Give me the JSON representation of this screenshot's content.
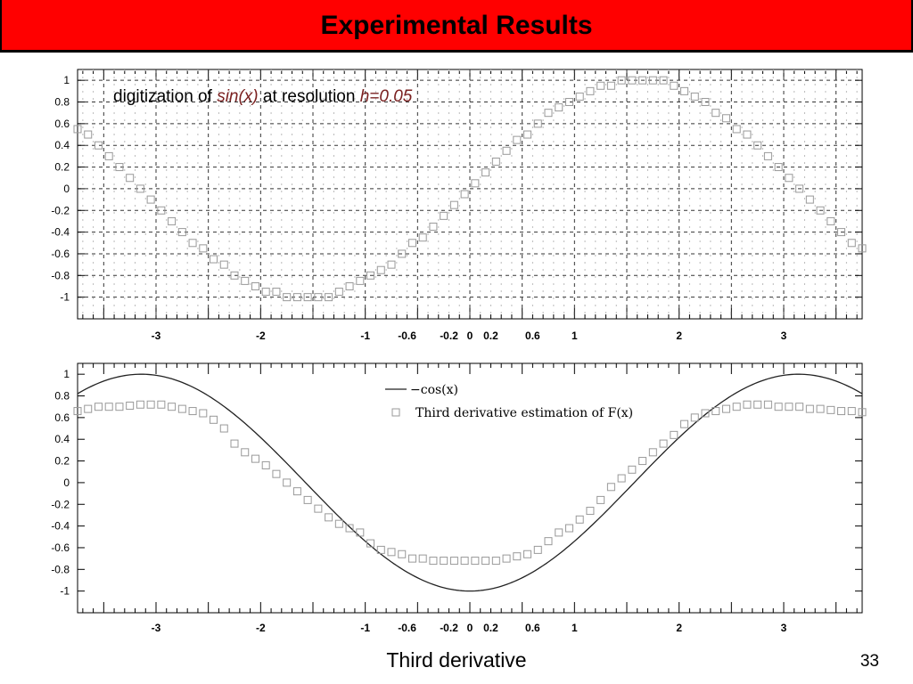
{
  "slide": {
    "title": "Experimental Results",
    "caption": "Third derivative",
    "page_number": "33"
  },
  "colors": {
    "title_bar": "#ff0000",
    "marker": "#999999",
    "curve": "#222222",
    "grid": "#333333"
  },
  "chart_data": [
    {
      "type": "scatter",
      "annotation": {
        "prefix": "digitization of ",
        "func": "sin(x)",
        "middle": " at resolution ",
        "param": "h=0.05",
        "italic_color": "#7a2020"
      },
      "xlim": [
        -3.75,
        3.75
      ],
      "ylim": [
        -1.2,
        1.1
      ],
      "xticks": [
        "-3",
        "-2",
        "-1",
        "-0.6",
        "-0.2",
        "0",
        "0.2",
        "0.6",
        "1",
        "2",
        "3"
      ],
      "yticks": [
        "1",
        "0.8",
        "0.6",
        "0.4",
        "0.2",
        "0",
        "-0.2",
        "-0.4",
        "-0.6",
        "-0.8",
        "-1"
      ],
      "grid": true,
      "series": [
        {
          "marker": "open-square",
          "function": "sin(x) quantized to step 0.05",
          "x": [
            -3.75,
            -3.65,
            -3.55,
            -3.45,
            -3.35,
            -3.25,
            -3.15,
            -3.05,
            -2.95,
            -2.85,
            -2.75,
            -2.65,
            -2.55,
            -2.45,
            -2.35,
            -2.25,
            -2.15,
            -2.05,
            -1.95,
            -1.85,
            -1.75,
            -1.65,
            -1.55,
            -1.45,
            -1.35,
            -1.25,
            -1.15,
            -1.05,
            -0.95,
            -0.85,
            -0.75,
            -0.65,
            -0.55,
            -0.45,
            -0.35,
            -0.25,
            -0.15,
            -0.05,
            0.05,
            0.15,
            0.25,
            0.35,
            0.45,
            0.55,
            0.65,
            0.75,
            0.85,
            0.95,
            1.05,
            1.15,
            1.25,
            1.35,
            1.45,
            1.55,
            1.65,
            1.75,
            1.85,
            1.95,
            2.05,
            2.15,
            2.25,
            2.35,
            2.45,
            2.55,
            2.65,
            2.75,
            2.85,
            2.95,
            3.05,
            3.15,
            3.25,
            3.35,
            3.45,
            3.55,
            3.65,
            3.75
          ],
          "y": [
            0.55,
            0.5,
            0.4,
            0.3,
            0.2,
            0.1,
            0.0,
            -0.1,
            -0.2,
            -0.3,
            -0.4,
            -0.5,
            -0.55,
            -0.65,
            -0.7,
            -0.8,
            -0.85,
            -0.9,
            -0.95,
            -0.95,
            -1.0,
            -1.0,
            -1.0,
            -1.0,
            -1.0,
            -0.95,
            -0.9,
            -0.85,
            -0.8,
            -0.75,
            -0.7,
            -0.6,
            -0.5,
            -0.45,
            -0.35,
            -0.25,
            -0.15,
            -0.05,
            0.05,
            0.15,
            0.25,
            0.35,
            0.45,
            0.5,
            0.6,
            0.7,
            0.75,
            0.8,
            0.85,
            0.9,
            0.95,
            0.95,
            1.0,
            1.0,
            1.0,
            1.0,
            1.0,
            0.95,
            0.9,
            0.85,
            0.8,
            0.7,
            0.65,
            0.55,
            0.5,
            0.4,
            0.3,
            0.2,
            0.1,
            0.0,
            -0.1,
            -0.2,
            -0.3,
            -0.4,
            -0.5,
            -0.55
          ]
        }
      ]
    },
    {
      "type": "line",
      "xlim": [
        -3.75,
        3.75
      ],
      "ylim": [
        -1.2,
        1.1
      ],
      "xticks": [
        "-3",
        "-2",
        "-1",
        "-0.6",
        "-0.2",
        "0",
        "0.2",
        "0.6",
        "1",
        "2",
        "3"
      ],
      "yticks": [
        "1",
        "0.8",
        "0.6",
        "0.4",
        "0.2",
        "0",
        "-0.2",
        "-0.4",
        "-0.6",
        "-0.8",
        "-1"
      ],
      "grid": false,
      "legend_position": "top-right",
      "series": [
        {
          "name": "−cos(x)",
          "style": "solid-line",
          "function": "-cos(x)"
        },
        {
          "name": "Third derivative estimation of F(x)",
          "marker": "open-square",
          "x": [
            -3.75,
            -3.65,
            -3.55,
            -3.45,
            -3.35,
            -3.25,
            -3.15,
            -3.05,
            -2.95,
            -2.85,
            -2.75,
            -2.65,
            -2.55,
            -2.45,
            -2.35,
            -2.25,
            -2.15,
            -2.05,
            -1.95,
            -1.85,
            -1.75,
            -1.65,
            -1.55,
            -1.45,
            -1.35,
            -1.25,
            -1.15,
            -1.05,
            -0.95,
            -0.85,
            -0.75,
            -0.65,
            -0.55,
            -0.45,
            -0.35,
            -0.25,
            -0.15,
            -0.05,
            0.05,
            0.15,
            0.25,
            0.35,
            0.45,
            0.55,
            0.65,
            0.75,
            0.85,
            0.95,
            1.05,
            1.15,
            1.25,
            1.35,
            1.45,
            1.55,
            1.65,
            1.75,
            1.85,
            1.95,
            2.05,
            2.15,
            2.25,
            2.35,
            2.45,
            2.55,
            2.65,
            2.75,
            2.85,
            2.95,
            3.05,
            3.15,
            3.25,
            3.35,
            3.45,
            3.55,
            3.65,
            3.75
          ],
          "y": [
            0.66,
            0.68,
            0.7,
            0.7,
            0.7,
            0.71,
            0.72,
            0.72,
            0.72,
            0.7,
            0.68,
            0.66,
            0.64,
            0.58,
            0.5,
            0.36,
            0.28,
            0.22,
            0.16,
            0.08,
            0.0,
            -0.08,
            -0.16,
            -0.24,
            -0.32,
            -0.38,
            -0.42,
            -0.46,
            -0.56,
            -0.62,
            -0.64,
            -0.66,
            -0.7,
            -0.7,
            -0.72,
            -0.72,
            -0.72,
            -0.72,
            -0.72,
            -0.72,
            -0.72,
            -0.7,
            -0.68,
            -0.66,
            -0.62,
            -0.54,
            -0.46,
            -0.42,
            -0.34,
            -0.26,
            -0.16,
            -0.04,
            0.04,
            0.12,
            0.2,
            0.28,
            0.36,
            0.44,
            0.54,
            0.6,
            0.64,
            0.66,
            0.68,
            0.7,
            0.72,
            0.72,
            0.72,
            0.7,
            0.7,
            0.7,
            0.68,
            0.68,
            0.67,
            0.66,
            0.66,
            0.65
          ]
        }
      ]
    }
  ]
}
